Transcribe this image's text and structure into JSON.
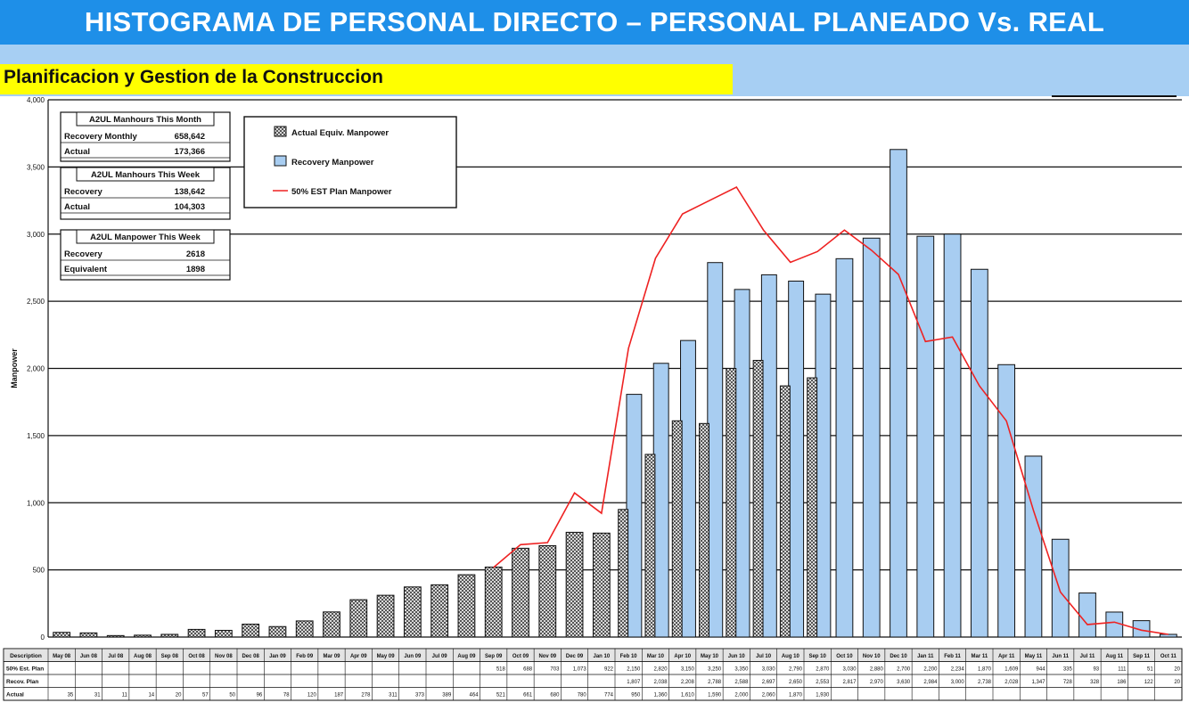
{
  "header": {
    "title": "HISTOGRAMA DE PERSONAL DIRECTO – PERSONAL PLANEADO Vs. REAL",
    "subtitle": "Planificacion y Gestion de la Construccion"
  },
  "colors": {
    "title_bg": "#1e8fe8",
    "subtitle_bg": "#a7cff3",
    "subtitle_highlight": "#ffff00",
    "recovery_bar": "#a8cdf1",
    "actual_bar": "#a0a0a0",
    "plan_line": "#ee2222"
  },
  "info_boxes": [
    {
      "title": "A2UL Manhours This Month",
      "rows": [
        {
          "label": "Recovery Monthly",
          "value": "658,642"
        },
        {
          "label": "Actual",
          "value": "173,366"
        }
      ]
    },
    {
      "title": "A2UL Manhours This Week",
      "rows": [
        {
          "label": "Recovery",
          "value": "138,642"
        },
        {
          "label": "Actual",
          "value": "104,303"
        }
      ]
    },
    {
      "title": "A2UL Manpower This Week",
      "rows": [
        {
          "label": "Recovery",
          "value": "2618"
        },
        {
          "label": "Equivalent",
          "value": "1898"
        }
      ]
    }
  ],
  "chart_data": {
    "type": "bar",
    "ylabel": "Manpower",
    "ylim": [
      0,
      4000
    ],
    "yticks": [
      "0",
      "500",
      "1,000",
      "1,500",
      "2,000",
      "2,500",
      "3,000",
      "3,500",
      "4,000"
    ],
    "legend_position": "top-left",
    "categories": [
      "May 08",
      "Jun 08",
      "Jul 08",
      "Aug 08",
      "Sep 08",
      "Oct 08",
      "Nov 08",
      "Dec 08",
      "Jan 09",
      "Feb 09",
      "Mar 09",
      "Apr 09",
      "May 09",
      "Jun 09",
      "Jul 09",
      "Aug 09",
      "Sep 09",
      "Oct 09",
      "Nov 09",
      "Dec 09",
      "Jan 10",
      "Feb 10",
      "Mar 10",
      "Apr 10",
      "May 10",
      "Jun 10",
      "Jul 10",
      "Aug 10",
      "Sep 10",
      "Oct 10",
      "Nov 10",
      "Dec 10",
      "Jan 11",
      "Feb 11",
      "Mar 11",
      "Apr 11",
      "May 11",
      "Jun 11",
      "Jul 11",
      "Aug 11",
      "Sep 11",
      "Oct 11"
    ],
    "series": [
      {
        "name": "Actual Equiv. Manpower",
        "type": "bar",
        "values": [
          35,
          31,
          11,
          14,
          20,
          57,
          50,
          96,
          78,
          120,
          187,
          278,
          311,
          373,
          389,
          464,
          521,
          661,
          680,
          780,
          774,
          950,
          1360,
          1610,
          1590,
          2000,
          2060,
          1870,
          1930,
          null,
          null,
          null,
          null,
          null,
          null,
          null,
          null,
          null,
          null,
          null,
          null,
          null
        ]
      },
      {
        "name": "Recovery Manpower",
        "type": "bar",
        "values": [
          null,
          null,
          null,
          null,
          null,
          null,
          null,
          null,
          null,
          null,
          null,
          null,
          null,
          null,
          null,
          null,
          null,
          null,
          null,
          null,
          null,
          1807,
          2038,
          2208,
          2788,
          2588,
          2697,
          2650,
          2553,
          2817,
          2970,
          3630,
          2984,
          3000,
          2738,
          2028,
          1347,
          728,
          328,
          186,
          122,
          20
        ]
      },
      {
        "name": "50% EST Plan Manpower",
        "type": "line",
        "values": [
          null,
          null,
          null,
          null,
          null,
          null,
          null,
          null,
          null,
          null,
          null,
          null,
          null,
          null,
          null,
          null,
          518,
          688,
          703,
          1073,
          922,
          2150,
          2820,
          3150,
          3250,
          3350,
          3030,
          2790,
          2870,
          3030,
          2880,
          2700,
          2200,
          2234,
          1870,
          1609,
          944,
          335,
          93,
          111,
          51,
          20
        ]
      }
    ]
  },
  "table": {
    "header_label": "Description",
    "row_labels": [
      "50% Est. Plan",
      "Recov. Plan",
      "Actual"
    ],
    "rows": [
      [
        "",
        "",
        "",
        "",
        "",
        "",
        "",
        "",
        "",
        "",
        "",
        "",
        "",
        "",
        "",
        "",
        "518",
        "688",
        "703",
        "1,073",
        "922",
        "2,150",
        "2,820",
        "3,150",
        "3,250",
        "3,350",
        "3,030",
        "2,790",
        "2,870",
        "3,030",
        "2,880",
        "2,700",
        "2,200",
        "2,234",
        "1,870",
        "1,609",
        "944",
        "335",
        "93",
        "111",
        "51",
        "20"
      ],
      [
        "",
        "",
        "",
        "",
        "",
        "",
        "",
        "",
        "",
        "",
        "",
        "",
        "",
        "",
        "",
        "",
        "",
        "",
        "",
        "",
        "",
        "1,807",
        "2,038",
        "2,208",
        "2,788",
        "2,588",
        "2,697",
        "2,650",
        "2,553",
        "2,817",
        "2,970",
        "3,630",
        "2,984",
        "3,000",
        "2,738",
        "2,028",
        "1,347",
        "728",
        "328",
        "186",
        "122",
        "20"
      ],
      [
        "35",
        "31",
        "11",
        "14",
        "20",
        "57",
        "50",
        "96",
        "78",
        "120",
        "187",
        "278",
        "311",
        "373",
        "389",
        "464",
        "521",
        "661",
        "680",
        "780",
        "774",
        "950",
        "1,360",
        "1,610",
        "1,590",
        "2,000",
        "2,060",
        "1,870",
        "1,930",
        "",
        "",
        "",
        "",
        "",
        "",
        "",
        "",
        "",
        "",
        "",
        "",
        ""
      ]
    ]
  }
}
